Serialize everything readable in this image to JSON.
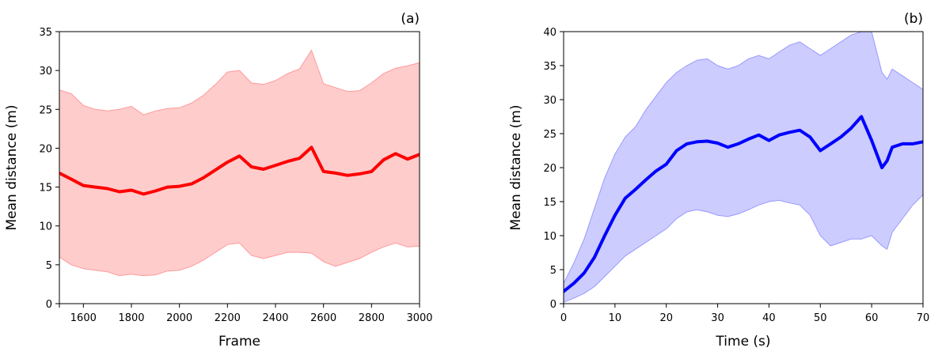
{
  "chart_data": [
    {
      "type": "line",
      "panel_label": "(a)",
      "xlabel": "Frame",
      "ylabel": "Mean distance (m)",
      "xlim": [
        1500,
        3000
      ],
      "ylim": [
        0,
        35
      ],
      "xticks": [
        1600,
        1800,
        2000,
        2200,
        2400,
        2600,
        2800,
        3000
      ],
      "yticks": [
        0,
        5,
        10,
        15,
        20,
        25,
        30,
        35
      ],
      "grid": false,
      "band_color": "#ff9999",
      "line_color": "#ff0000",
      "series": [
        {
          "x": [
            1500,
            1550,
            1600,
            1650,
            1700,
            1750,
            1800,
            1850,
            1900,
            1950,
            2000,
            2050,
            2100,
            2150,
            2200,
            2250,
            2300,
            2350,
            2400,
            2450,
            2500,
            2550,
            2600,
            2650,
            2700,
            2750,
            2800,
            2850,
            2900,
            2950,
            3000
          ],
          "y": [
            16.8,
            16.0,
            15.2,
            15.0,
            14.8,
            14.4,
            14.6,
            14.1,
            14.5,
            15.0,
            15.1,
            15.4,
            16.2,
            17.2,
            18.2,
            19.0,
            17.6,
            17.3,
            17.8,
            18.3,
            18.7,
            20.1,
            17.0,
            16.8,
            16.5,
            16.7,
            17.0,
            18.5,
            19.3,
            18.6,
            19.2
          ],
          "lower": [
            6.0,
            5.0,
            4.5,
            4.3,
            4.1,
            3.6,
            3.8,
            3.6,
            3.7,
            4.2,
            4.3,
            4.8,
            5.6,
            6.6,
            7.6,
            7.8,
            6.2,
            5.8,
            6.2,
            6.6,
            6.6,
            6.5,
            5.4,
            4.8,
            5.3,
            5.8,
            6.6,
            7.3,
            7.8,
            7.3,
            7.4
          ],
          "upper": [
            27.5,
            27.0,
            25.5,
            25.0,
            24.8,
            25.0,
            25.4,
            24.3,
            24.8,
            25.1,
            25.2,
            25.8,
            26.8,
            28.2,
            29.8,
            30.0,
            28.4,
            28.2,
            28.7,
            29.6,
            30.2,
            32.6,
            28.3,
            27.8,
            27.3,
            27.4,
            28.4,
            29.6,
            30.3,
            30.6,
            31.0
          ]
        }
      ]
    },
    {
      "type": "line",
      "panel_label": "(b)",
      "xlabel": "Time (s)",
      "ylabel": "Mean distance (m)",
      "xlim": [
        0,
        70
      ],
      "ylim": [
        0,
        40
      ],
      "xticks": [
        0,
        10,
        20,
        30,
        40,
        50,
        60,
        70
      ],
      "yticks": [
        0,
        5,
        10,
        15,
        20,
        25,
        30,
        35,
        40
      ],
      "grid": false,
      "band_color": "#9999ff",
      "line_color": "#0000ff",
      "series": [
        {
          "x": [
            0,
            2,
            4,
            6,
            8,
            10,
            12,
            14,
            16,
            18,
            20,
            22,
            24,
            26,
            28,
            30,
            32,
            34,
            36,
            38,
            40,
            42,
            44,
            46,
            48,
            50,
            52,
            54,
            56,
            58,
            60,
            62,
            63,
            64,
            66,
            68,
            70
          ],
          "y": [
            1.8,
            3.0,
            4.5,
            6.8,
            10.0,
            13.0,
            15.5,
            16.8,
            18.2,
            19.5,
            20.5,
            22.5,
            23.5,
            23.8,
            23.9,
            23.6,
            23.0,
            23.5,
            24.2,
            24.8,
            24.0,
            24.8,
            25.2,
            25.5,
            24.5,
            22.5,
            23.5,
            24.5,
            25.8,
            27.5,
            24.0,
            20.0,
            21.0,
            23.0,
            23.5,
            23.5,
            23.8
          ],
          "lower": [
            0.2,
            0.8,
            1.5,
            2.5,
            4.0,
            5.5,
            7.0,
            8.0,
            9.0,
            10.0,
            11.0,
            12.5,
            13.5,
            13.8,
            13.5,
            13.0,
            12.8,
            13.2,
            13.8,
            14.5,
            15.0,
            15.2,
            14.8,
            14.5,
            13.0,
            10.0,
            8.5,
            9.0,
            9.5,
            9.5,
            10.0,
            8.5,
            8.0,
            10.5,
            12.5,
            14.5,
            16.0
          ],
          "upper": [
            3.0,
            6.0,
            9.5,
            14.0,
            18.5,
            22.0,
            24.5,
            26.0,
            28.5,
            30.5,
            32.5,
            34.0,
            35.0,
            35.8,
            36.0,
            35.0,
            34.5,
            35.0,
            36.0,
            36.5,
            36.0,
            37.0,
            38.0,
            38.5,
            37.5,
            36.5,
            37.5,
            38.5,
            39.5,
            40.0,
            40.0,
            34.0,
            33.0,
            34.5,
            33.5,
            32.5,
            31.5
          ]
        }
      ]
    }
  ]
}
